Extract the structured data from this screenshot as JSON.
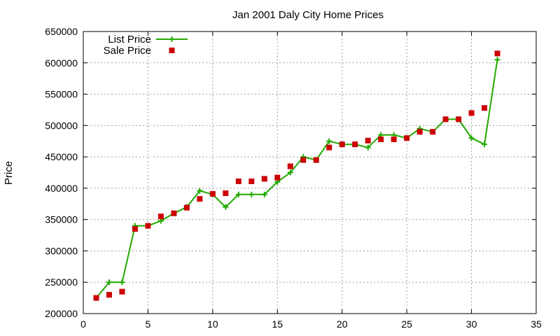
{
  "chart_data": {
    "type": "line",
    "title": "Jan 2001 Daly City Home Prices",
    "xlabel": "",
    "ylabel": "Price",
    "xlim": [
      0,
      35
    ],
    "ylim": [
      200000,
      650000
    ],
    "x_ticks": [
      0,
      5,
      10,
      15,
      20,
      25,
      30,
      35
    ],
    "y_ticks": [
      200000,
      250000,
      300000,
      350000,
      400000,
      450000,
      500000,
      550000,
      600000,
      650000
    ],
    "grid": true,
    "legend_position": "top-left",
    "series": [
      {
        "name": "List Price",
        "style": "line-with-plus-markers",
        "color": "#22aa00",
        "x": [
          1,
          2,
          3,
          4,
          5,
          6,
          7,
          8,
          9,
          10,
          11,
          12,
          13,
          14,
          15,
          16,
          17,
          18,
          19,
          20,
          21,
          22,
          23,
          24,
          25,
          26,
          27,
          28,
          29,
          30,
          31,
          32
        ],
        "values": [
          225000,
          250000,
          250000,
          340000,
          340000,
          348000,
          360000,
          370000,
          396000,
          390000,
          370000,
          390000,
          390000,
          390000,
          410000,
          425000,
          450000,
          445000,
          475000,
          470000,
          470000,
          465000,
          485000,
          485000,
          480000,
          495000,
          490000,
          510000,
          510000,
          480000,
          470000,
          605000
        ]
      },
      {
        "name": "Sale Price",
        "style": "square-markers",
        "color": "#cc0000",
        "x": [
          1,
          2,
          3,
          4,
          5,
          6,
          7,
          8,
          9,
          10,
          11,
          12,
          13,
          14,
          15,
          16,
          17,
          18,
          19,
          20,
          21,
          22,
          23,
          24,
          25,
          26,
          27,
          28,
          29,
          30,
          31,
          32
        ],
        "values": [
          225000,
          230000,
          235000,
          335000,
          340000,
          355000,
          360000,
          369000,
          383000,
          391000,
          392000,
          411000,
          411000,
          415000,
          417000,
          435000,
          445000,
          445000,
          465000,
          470000,
          470000,
          476000,
          478000,
          478000,
          480000,
          490000,
          490000,
          510000,
          510000,
          520000,
          528000,
          615000
        ]
      }
    ]
  }
}
